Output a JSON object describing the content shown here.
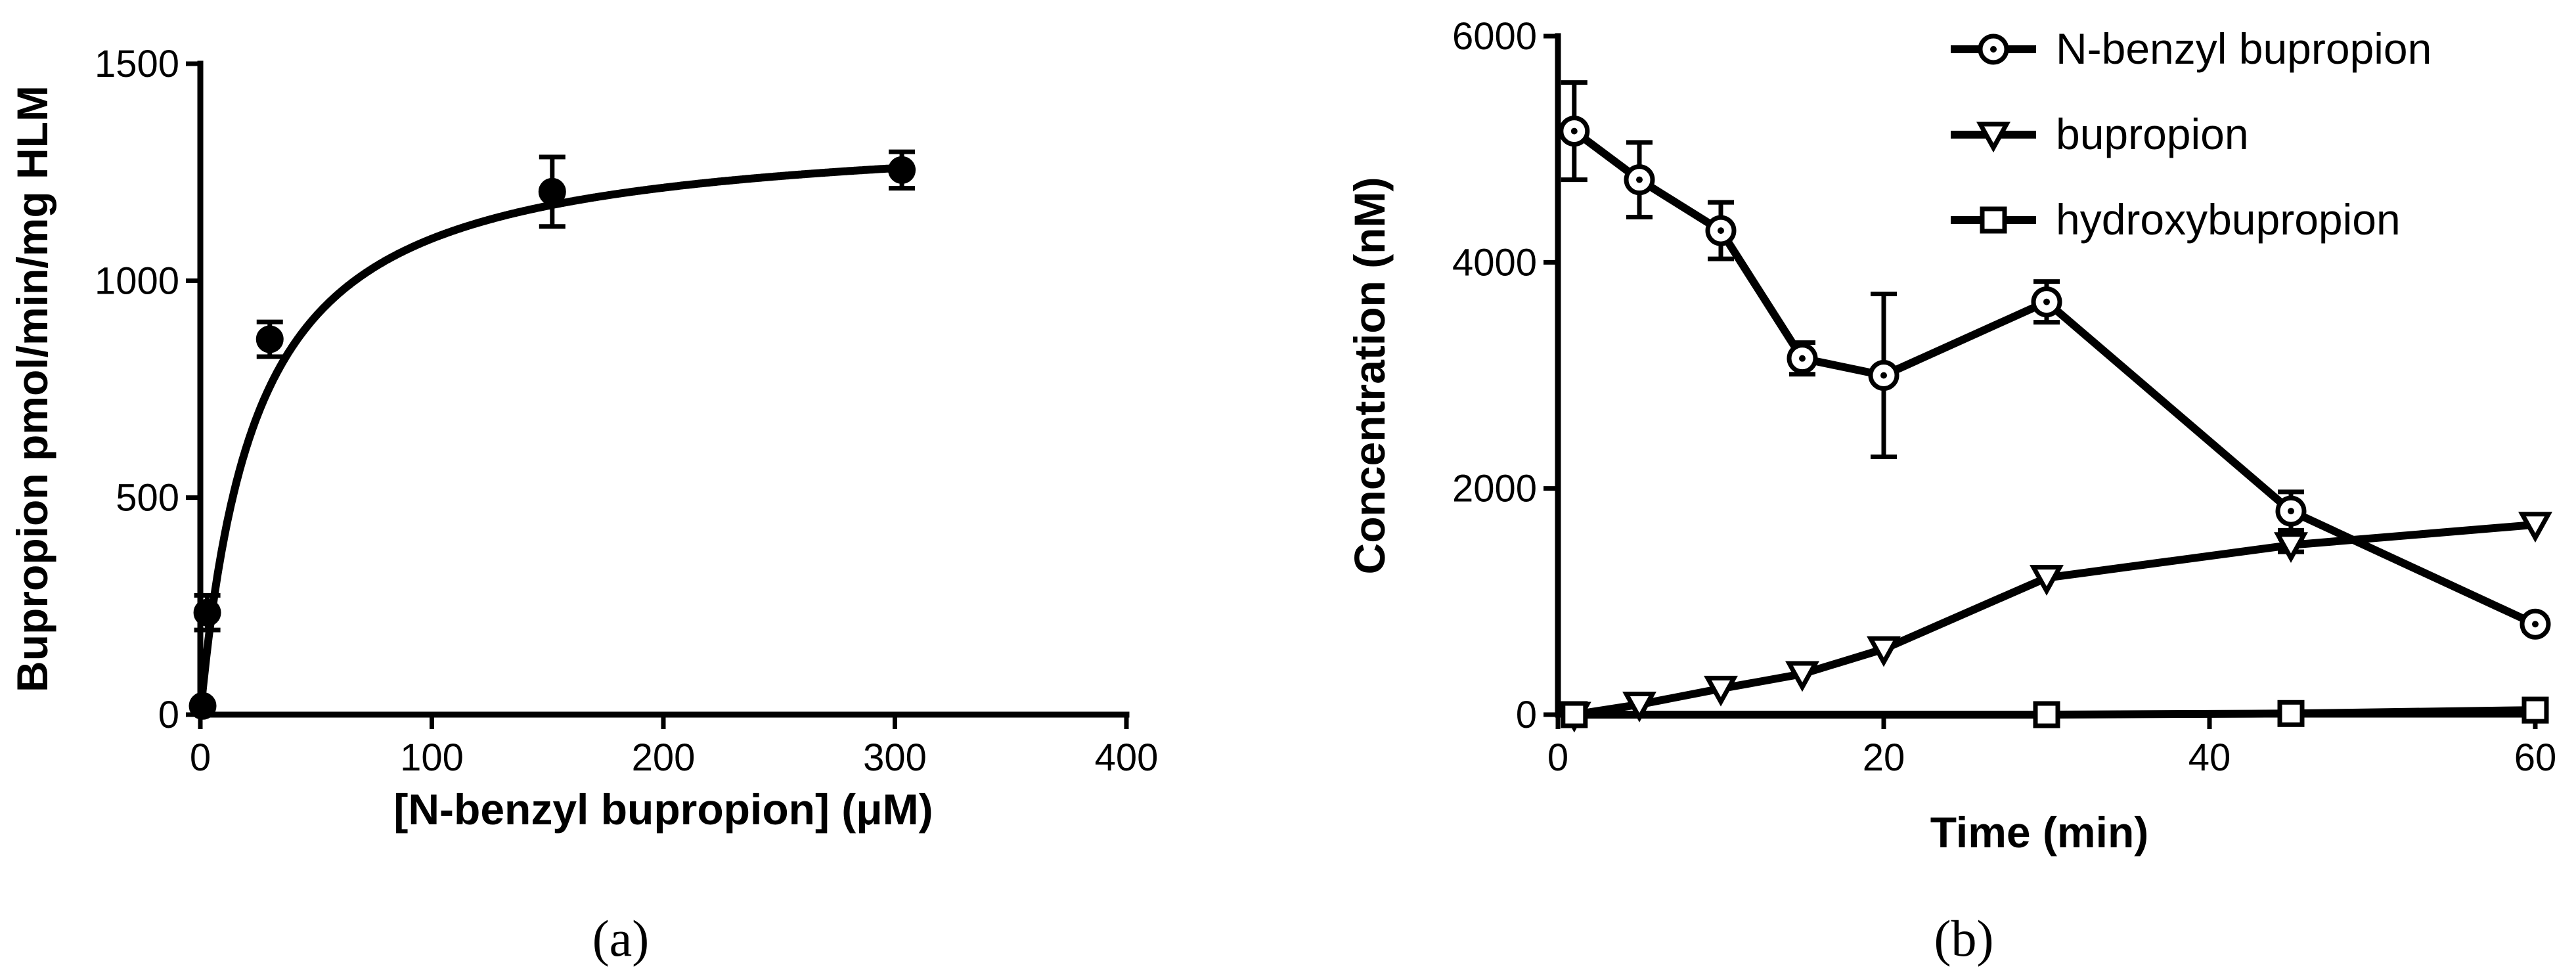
{
  "chart_data": [
    {
      "type": "scatter",
      "panel_label": "(a)",
      "xlabel": "[N-benzyl bupropion] (μM)",
      "ylabel": "Bupropion pmol/min/mg HLM",
      "xlim": [
        0,
        400
      ],
      "ylim": [
        0,
        1500
      ],
      "xticks": [
        0,
        100,
        200,
        300,
        400
      ],
      "yticks": [
        0,
        500,
        1000,
        1500
      ],
      "grid": false,
      "points": [
        {
          "x": 1,
          "y": 20,
          "err": 5
        },
        {
          "x": 3,
          "y": 235,
          "err": 40
        },
        {
          "x": 30,
          "y": 865,
          "err": 40
        },
        {
          "x": 152,
          "y": 1205,
          "err": 80
        },
        {
          "x": 303,
          "y": 1255,
          "err": 42
        }
      ],
      "fit": {
        "model": "Michaelis-Menten",
        "Vmax": 1360,
        "Km": 24
      }
    },
    {
      "type": "line",
      "panel_label": "(b)",
      "xlabel": "Time (min)",
      "ylabel": "Concentration (nM)",
      "xlim": [
        0,
        60
      ],
      "ylim": [
        0,
        6000
      ],
      "xticks": [
        0,
        20,
        40,
        60
      ],
      "yticks": [
        0,
        2000,
        4000,
        6000
      ],
      "grid": false,
      "legend_position": "top-right",
      "series": [
        {
          "name": "N-benzyl bupropion",
          "marker": "circle-dot",
          "x": [
            1,
            5,
            10,
            15,
            20,
            30,
            45,
            60
          ],
          "y": [
            5160,
            4730,
            4280,
            3150,
            3000,
            3650,
            1800,
            800
          ],
          "err": [
            430,
            330,
            250,
            140,
            720,
            180,
            170,
            60
          ]
        },
        {
          "name": "bupropion",
          "marker": "triangle-down",
          "x": [
            1,
            5,
            10,
            15,
            20,
            30,
            45,
            60
          ],
          "y": [
            0,
            90,
            230,
            360,
            580,
            1210,
            1500,
            1680
          ],
          "err": [
            0,
            0,
            0,
            0,
            0,
            0,
            60,
            0
          ]
        },
        {
          "name": "hydroxybupropion",
          "marker": "square",
          "x": [
            1,
            30,
            45,
            60
          ],
          "y": [
            0,
            0,
            10,
            40
          ],
          "err": [
            0,
            0,
            0,
            0
          ]
        }
      ]
    }
  ]
}
